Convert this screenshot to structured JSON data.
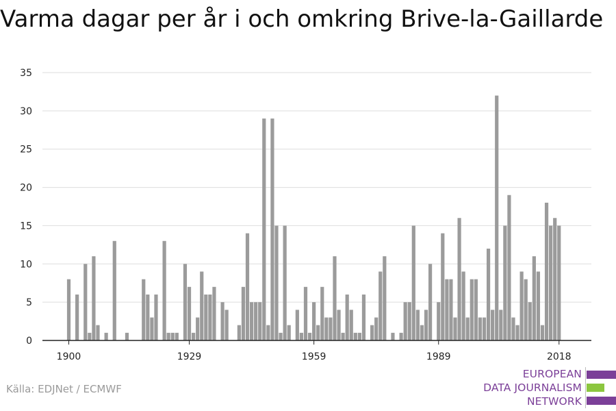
{
  "title": "Varma dagar per år i och omkring Brive-la-Gaillarde",
  "source": "Källa: EDJNet / ECMWF",
  "logo": {
    "lines": [
      "EUROPEAN",
      "DATA JOURNALISM",
      "NETWORK"
    ],
    "colors": [
      "#7b3f98",
      "#8cc63f",
      "#7b3f98"
    ]
  },
  "chart_data": {
    "type": "bar",
    "title": "Varma dagar per år i och omkring Brive-la-Gaillarde",
    "xlabel": "",
    "ylabel": "",
    "x_tick_labels": [
      "1900",
      "1929",
      "1959",
      "1989",
      "2018"
    ],
    "y_ticks": [
      0,
      5,
      10,
      15,
      20,
      25,
      30,
      35
    ],
    "ylim": [
      0,
      35
    ],
    "xlim": [
      1894,
      2024
    ],
    "grid": true,
    "bar_color": "#9b9b9b",
    "x": [
      1900,
      1901,
      1902,
      1903,
      1904,
      1905,
      1906,
      1907,
      1908,
      1909,
      1910,
      1911,
      1912,
      1913,
      1914,
      1915,
      1916,
      1917,
      1918,
      1919,
      1920,
      1921,
      1922,
      1923,
      1924,
      1925,
      1926,
      1927,
      1928,
      1929,
      1930,
      1931,
      1932,
      1933,
      1934,
      1935,
      1936,
      1937,
      1938,
      1939,
      1940,
      1941,
      1942,
      1943,
      1944,
      1945,
      1946,
      1947,
      1948,
      1949,
      1950,
      1951,
      1952,
      1953,
      1954,
      1955,
      1956,
      1957,
      1958,
      1959,
      1960,
      1961,
      1962,
      1963,
      1964,
      1965,
      1966,
      1967,
      1968,
      1969,
      1970,
      1971,
      1972,
      1973,
      1974,
      1975,
      1976,
      1977,
      1978,
      1979,
      1980,
      1981,
      1982,
      1983,
      1984,
      1985,
      1986,
      1987,
      1988,
      1989,
      1990,
      1991,
      1992,
      1993,
      1994,
      1995,
      1996,
      1997,
      1998,
      1999,
      2000,
      2001,
      2002,
      2003,
      2004,
      2005,
      2006,
      2007,
      2008,
      2009,
      2010,
      2011,
      2012,
      2013,
      2014,
      2015,
      2016,
      2017,
      2018
    ],
    "values": [
      8,
      0,
      6,
      0,
      10,
      1,
      11,
      2,
      0,
      1,
      0,
      13,
      0,
      0,
      1,
      0,
      0,
      0,
      8,
      6,
      3,
      6,
      0,
      13,
      1,
      1,
      1,
      0,
      10,
      7,
      1,
      3,
      9,
      6,
      6,
      7,
      0,
      5,
      4,
      0,
      0,
      2,
      7,
      14,
      5,
      5,
      5,
      29,
      2,
      29,
      15,
      1,
      15,
      2,
      0,
      4,
      1,
      7,
      1,
      5,
      2,
      7,
      3,
      3,
      11,
      4,
      1,
      6,
      4,
      1,
      1,
      6,
      0,
      2,
      3,
      9,
      11,
      0,
      1,
      0,
      1,
      5,
      5,
      15,
      4,
      2,
      4,
      10,
      0,
      5,
      14,
      8,
      8,
      3,
      16,
      9,
      3,
      8,
      8,
      3,
      3,
      12,
      4,
      32,
      4,
      15,
      19,
      3,
      2,
      9,
      8,
      5,
      11,
      9,
      2,
      18,
      15,
      16,
      15
    ]
  }
}
